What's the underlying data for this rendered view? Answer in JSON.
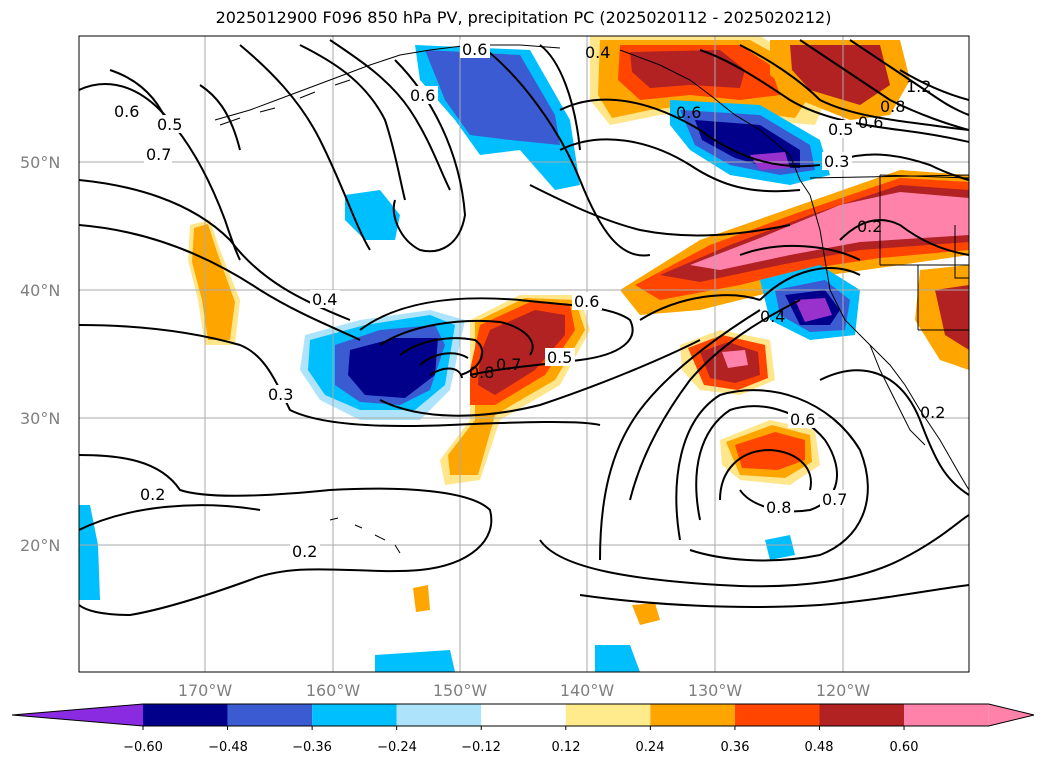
{
  "title": "2025012900 F096 850 hPa PV, precipitation PC (2025020112 - 2025020212)",
  "lat_labels": [
    "50°N",
    "40°N",
    "30°N",
    "20°N"
  ],
  "lon_labels": [
    "170°W",
    "160°W",
    "150°W",
    "140°W",
    "130°W",
    "120°W"
  ],
  "contour_labels": [
    "0.6",
    "0.5",
    "0.7",
    "0.6",
    "0.6",
    "0.4",
    "0.5",
    "0.6",
    "0.3",
    "0.2",
    "0.4",
    "0.3",
    "0.6",
    "0.8",
    "0.7",
    "0.5",
    "0.2",
    "0.2",
    "0.6",
    "0.8",
    "0.7",
    "0.2",
    "0.6",
    "0.8",
    "1.2",
    "0.4"
  ],
  "colorbar": {
    "ticks": [
      "−0.60",
      "−0.48",
      "−0.36",
      "−0.24",
      "−0.12",
      "0.12",
      "0.24",
      "0.36",
      "0.48",
      "0.60"
    ],
    "colors": [
      "#8a2be2",
      "#00008b",
      "#3a5bd1",
      "#00bfff",
      "#ade4fb",
      "#ffffff",
      "#ffeb8c",
      "#ffa500",
      "#ff4500",
      "#b22222",
      "#ff82ab",
      "#ff82ab"
    ]
  },
  "fill_colors": {
    "violet": "#9932cc",
    "navy": "#00008b",
    "royal": "#3a5bd1",
    "sky": "#00bfff",
    "pale_blue": "#ade4fb",
    "pale_yellow": "#ffe68a",
    "orange": "#ffa500",
    "red_orange": "#ff4500",
    "firebrick": "#b22222",
    "pink": "#ff82ab"
  }
}
